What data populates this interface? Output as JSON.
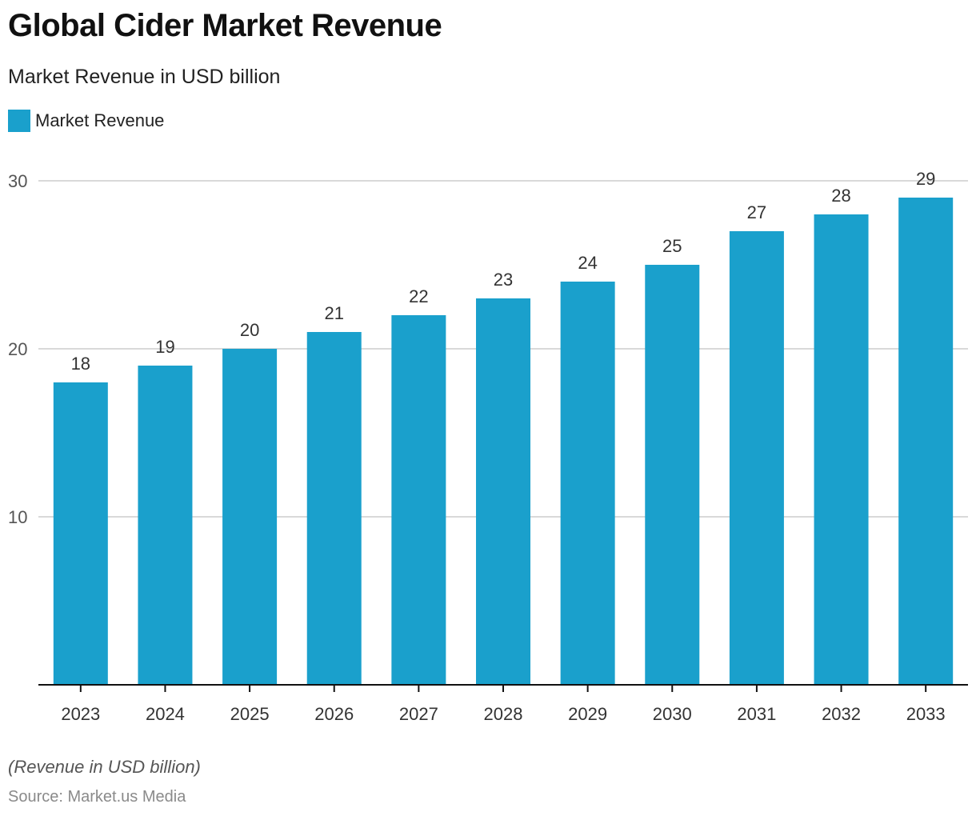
{
  "title": "Global Cider Market Revenue",
  "subtitle": "Market Revenue in USD billion",
  "footnote": "(Revenue in USD billion)",
  "source": "Source: Market.us Media",
  "colors": {
    "bar": "#1aa0cc",
    "grid": "#d9d9d9",
    "axis": "#111111",
    "tick_text": "#555555",
    "label_text": "#333333"
  },
  "chart_data": {
    "type": "bar",
    "title": "Global Cider Market Revenue",
    "subtitle": "Market Revenue in USD billion",
    "xlabel": "",
    "ylabel": "",
    "categories": [
      "2023",
      "2024",
      "2025",
      "2026",
      "2027",
      "2028",
      "2029",
      "2030",
      "2031",
      "2032",
      "2033"
    ],
    "series": [
      {
        "name": "Market Revenue",
        "values": [
          18,
          19,
          20,
          21,
          22,
          23,
          24,
          25,
          27,
          28,
          29
        ]
      }
    ],
    "ylim": [
      0,
      30
    ],
    "yticks": [
      10,
      20,
      30
    ],
    "grid": true,
    "legend": "top-left",
    "data_labels": true
  }
}
